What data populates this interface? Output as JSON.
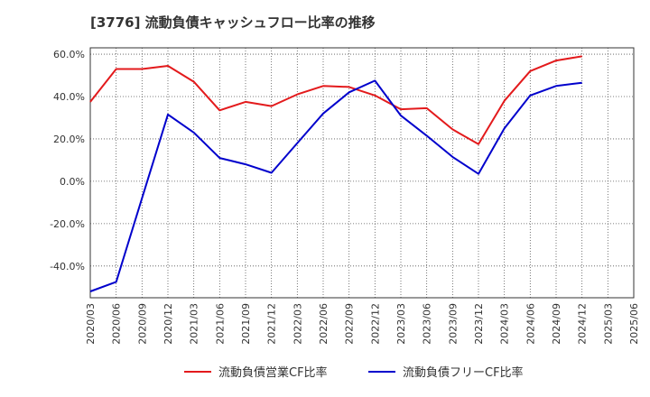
{
  "chart_data": {
    "type": "line",
    "title": "[3776]  流動負債キャッシュフロー比率の推移",
    "xlabel": "",
    "ylabel": "",
    "ylim": [
      -55,
      63
    ],
    "yticks": [
      60,
      40,
      20,
      0,
      -20,
      -40
    ],
    "ytick_labels": [
      "60.0%",
      "40.0%",
      "20.0%",
      "0.0%",
      "-20.0%",
      "-40.0%"
    ],
    "categories": [
      "2020/03",
      "2020/06",
      "2020/09",
      "2020/12",
      "2021/03",
      "2021/06",
      "2021/09",
      "2021/12",
      "2022/03",
      "2022/06",
      "2022/09",
      "2022/12",
      "2023/03",
      "2023/06",
      "2023/09",
      "2023/12",
      "2024/03",
      "2024/06",
      "2024/09",
      "2024/12",
      "2025/03",
      "2025/06"
    ],
    "grid": true,
    "legend_position": "bottom",
    "series": [
      {
        "name": "流動負債営業CF比率",
        "color": "#e31a1c",
        "values": [
          37.5,
          53.0,
          53.0,
          54.5,
          47.0,
          33.5,
          37.5,
          35.5,
          41.0,
          45.0,
          44.5,
          40.5,
          34.0,
          34.5,
          24.5,
          17.5,
          38.0,
          52.0,
          57.0,
          59.0,
          null,
          null
        ]
      },
      {
        "name": "流動負債フリーCF比率",
        "color": "#0000cc",
        "values": [
          -52.0,
          -47.5,
          -8.0,
          31.5,
          23.0,
          11.0,
          8.0,
          4.0,
          18.0,
          32.0,
          42.0,
          47.5,
          31.0,
          21.5,
          11.5,
          3.5,
          25.0,
          40.5,
          45.0,
          46.5,
          null,
          null
        ]
      }
    ]
  }
}
